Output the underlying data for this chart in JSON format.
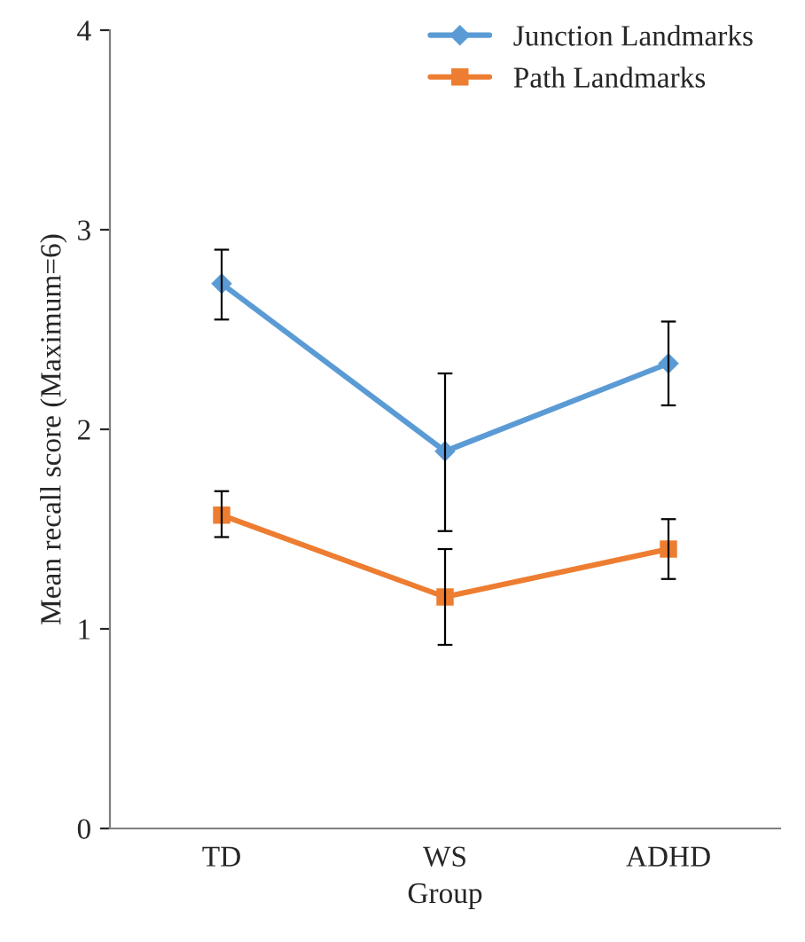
{
  "chart_data": {
    "type": "line",
    "xlabel": "Group",
    "ylabel": "Mean recall score (Maximum=6)",
    "categories": [
      "TD",
      "WS",
      "ADHD"
    ],
    "series": [
      {
        "name": "Junction Landmarks",
        "color": "#5b9bd5",
        "marker": "diamond",
        "values": [
          2.73,
          1.89,
          2.33
        ],
        "errors": [
          [
            2.55,
            2.9
          ],
          [
            1.49,
            2.28
          ],
          [
            2.12,
            2.54
          ]
        ]
      },
      {
        "name": "Path Landmarks",
        "color": "#ed7d31",
        "marker": "square",
        "values": [
          1.57,
          1.16,
          1.4
        ],
        "errors": [
          [
            1.46,
            1.69
          ],
          [
            0.92,
            1.4
          ],
          [
            1.25,
            1.55
          ]
        ]
      }
    ],
    "ylim": [
      0,
      4
    ],
    "yticks": [
      0,
      1,
      2,
      3,
      4
    ],
    "grid": false,
    "legend": "top right",
    "line_style": "solid"
  }
}
